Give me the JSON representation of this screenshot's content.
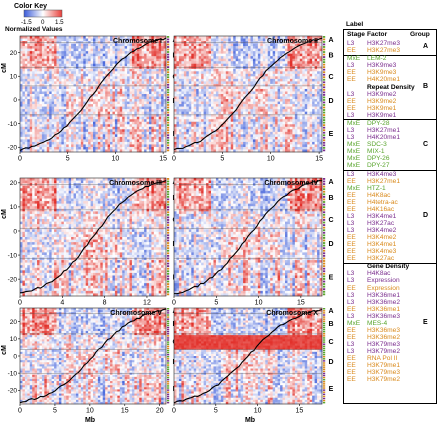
{
  "color_key": {
    "title": "Color Key",
    "ticks": [
      "-1.5",
      "0",
      "1.5"
    ],
    "subtitle": "Normalized Values",
    "colors": [
      "#3a5bd9",
      "#ffffff",
      "#e8403a"
    ]
  },
  "axes": {
    "ylabel": "cM",
    "xlabel": "Mb"
  },
  "panels": [
    {
      "title": "Chromosome I",
      "xticks": [
        "0",
        "5",
        "10",
        "15"
      ],
      "xmax": 15.3,
      "yticks": [
        "20",
        "10",
        "0",
        "-10",
        "-20"
      ],
      "ymin": -22,
      "ymax": 27,
      "intense": 0.0
    },
    {
      "title": "Chromosome II",
      "xticks": [
        "0",
        "5",
        "10",
        "15"
      ],
      "xmax": 15.3,
      "yticks": [],
      "ymin": -20,
      "ymax": 30,
      "intense": 0.0
    },
    {
      "title": "Chromosome III",
      "xticks": [
        "0",
        "4",
        "8",
        "12"
      ],
      "xmax": 13.8,
      "yticks": [
        "20",
        "10",
        "0",
        "-10",
        "-20"
      ],
      "ymin": -27,
      "ymax": 22,
      "intense": 0.0
    },
    {
      "title": "Chromosome IV",
      "xticks": [
        "0",
        "5",
        "10",
        "15"
      ],
      "xmax": 17.5,
      "yticks": [],
      "ymin": -28,
      "ymax": 25,
      "intense": 0.0
    },
    {
      "title": "Chromosome V",
      "xticks": [
        "0",
        "5",
        "10",
        "15",
        "20"
      ],
      "xmax": 20.9,
      "yticks": [
        "20",
        "10",
        "0",
        "-10",
        "-20"
      ],
      "ymin": -28,
      "ymax": 28,
      "intense": 0.0
    },
    {
      "title": "Chromosome X",
      "xticks": [
        "0",
        "5",
        "10",
        "15"
      ],
      "xmax": 17.7,
      "yticks": [],
      "ymin": -20,
      "ymax": 25,
      "intense": 1.0
    }
  ],
  "group_letters": [
    "A",
    "B",
    "C",
    "D",
    "E"
  ],
  "legend": {
    "title": "Label",
    "col_stage": "Stage",
    "col_factor": "Factor",
    "col_group": "Group",
    "stage_colors": {
      "L3": "#7b2e8e",
      "EE": "#d98a1c",
      "MxE": "#5aa52e"
    },
    "groups": [
      {
        "group": "A",
        "rows": [
          {
            "stage": "L3",
            "factor": "H3K27me3"
          },
          {
            "stage": "EE",
            "factor": "H3K27me3"
          }
        ]
      },
      {
        "group": "B",
        "rows": [
          {
            "stage": "MxE",
            "factor": "LEM-2"
          },
          {
            "stage": "L3",
            "factor": "H3K9me3"
          },
          {
            "stage": "EE",
            "factor": "H3K9me3"
          },
          {
            "stage": "EE",
            "factor": "H4K20me1"
          },
          {
            "stage": "",
            "factor": "Repeat Density",
            "heading": true
          },
          {
            "stage": "L3",
            "factor": "H3K9me2"
          },
          {
            "stage": "EE",
            "factor": "H3K9me2"
          },
          {
            "stage": "EE",
            "factor": "H3K9me1"
          },
          {
            "stage": "L3",
            "factor": "H3K9me1"
          }
        ]
      },
      {
        "group": "C",
        "rows": [
          {
            "stage": "MxE",
            "factor": "DPY-28"
          },
          {
            "stage": "L3",
            "factor": "H3K27me1"
          },
          {
            "stage": "L3",
            "factor": "H4K20me1"
          },
          {
            "stage": "MxE",
            "factor": "SDC-3"
          },
          {
            "stage": "MxE",
            "factor": "MIX-1"
          },
          {
            "stage": "MxE",
            "factor": "DPY-26"
          },
          {
            "stage": "MxE",
            "factor": "DPY-27"
          }
        ]
      },
      {
        "group": "D",
        "rows": [
          {
            "stage": "L3",
            "factor": "H3K4me3"
          },
          {
            "stage": "EE",
            "factor": "H3K27me1"
          },
          {
            "stage": "MxE",
            "factor": "HTZ-1"
          },
          {
            "stage": "EE",
            "factor": "H4K8ac"
          },
          {
            "stage": "EE",
            "factor": "H4tetra-ac"
          },
          {
            "stage": "EE",
            "factor": "H4K16ac"
          },
          {
            "stage": "L3",
            "factor": "H3K4me1"
          },
          {
            "stage": "L3",
            "factor": "H3K27ac"
          },
          {
            "stage": "L3",
            "factor": "H3K4me2"
          },
          {
            "stage": "EE",
            "factor": "H3K4me2"
          },
          {
            "stage": "EE",
            "factor": "H3K4me1"
          },
          {
            "stage": "EE",
            "factor": "H3K4me3"
          },
          {
            "stage": "EE",
            "factor": "H3K27ac"
          }
        ]
      },
      {
        "group": "E",
        "rows": [
          {
            "stage": "",
            "factor": "Gene Density",
            "heading": true
          },
          {
            "stage": "L3",
            "factor": "H4K8ac"
          },
          {
            "stage": "L3",
            "factor": "Expression"
          },
          {
            "stage": "EE",
            "factor": "Expression"
          },
          {
            "stage": "L3",
            "factor": "H3K36me1"
          },
          {
            "stage": "L3",
            "factor": "H3K36me2"
          },
          {
            "stage": "EE",
            "factor": "H3K36me1"
          },
          {
            "stage": "L3",
            "factor": "H3K36me3"
          },
          {
            "stage": "MxE",
            "factor": "MES-4"
          },
          {
            "stage": "EE",
            "factor": "H3K36me3"
          },
          {
            "stage": "EE",
            "factor": "H3K36me2"
          },
          {
            "stage": "L3",
            "factor": "H3K79me3"
          },
          {
            "stage": "L3",
            "factor": "H3K79me2"
          },
          {
            "stage": "EE",
            "factor": "RNA Pol II"
          },
          {
            "stage": "EE",
            "factor": "H3K79me1"
          },
          {
            "stage": "EE",
            "factor": "H3K79me3"
          },
          {
            "stage": "EE",
            "factor": "H3K79me2"
          }
        ]
      }
    ]
  }
}
